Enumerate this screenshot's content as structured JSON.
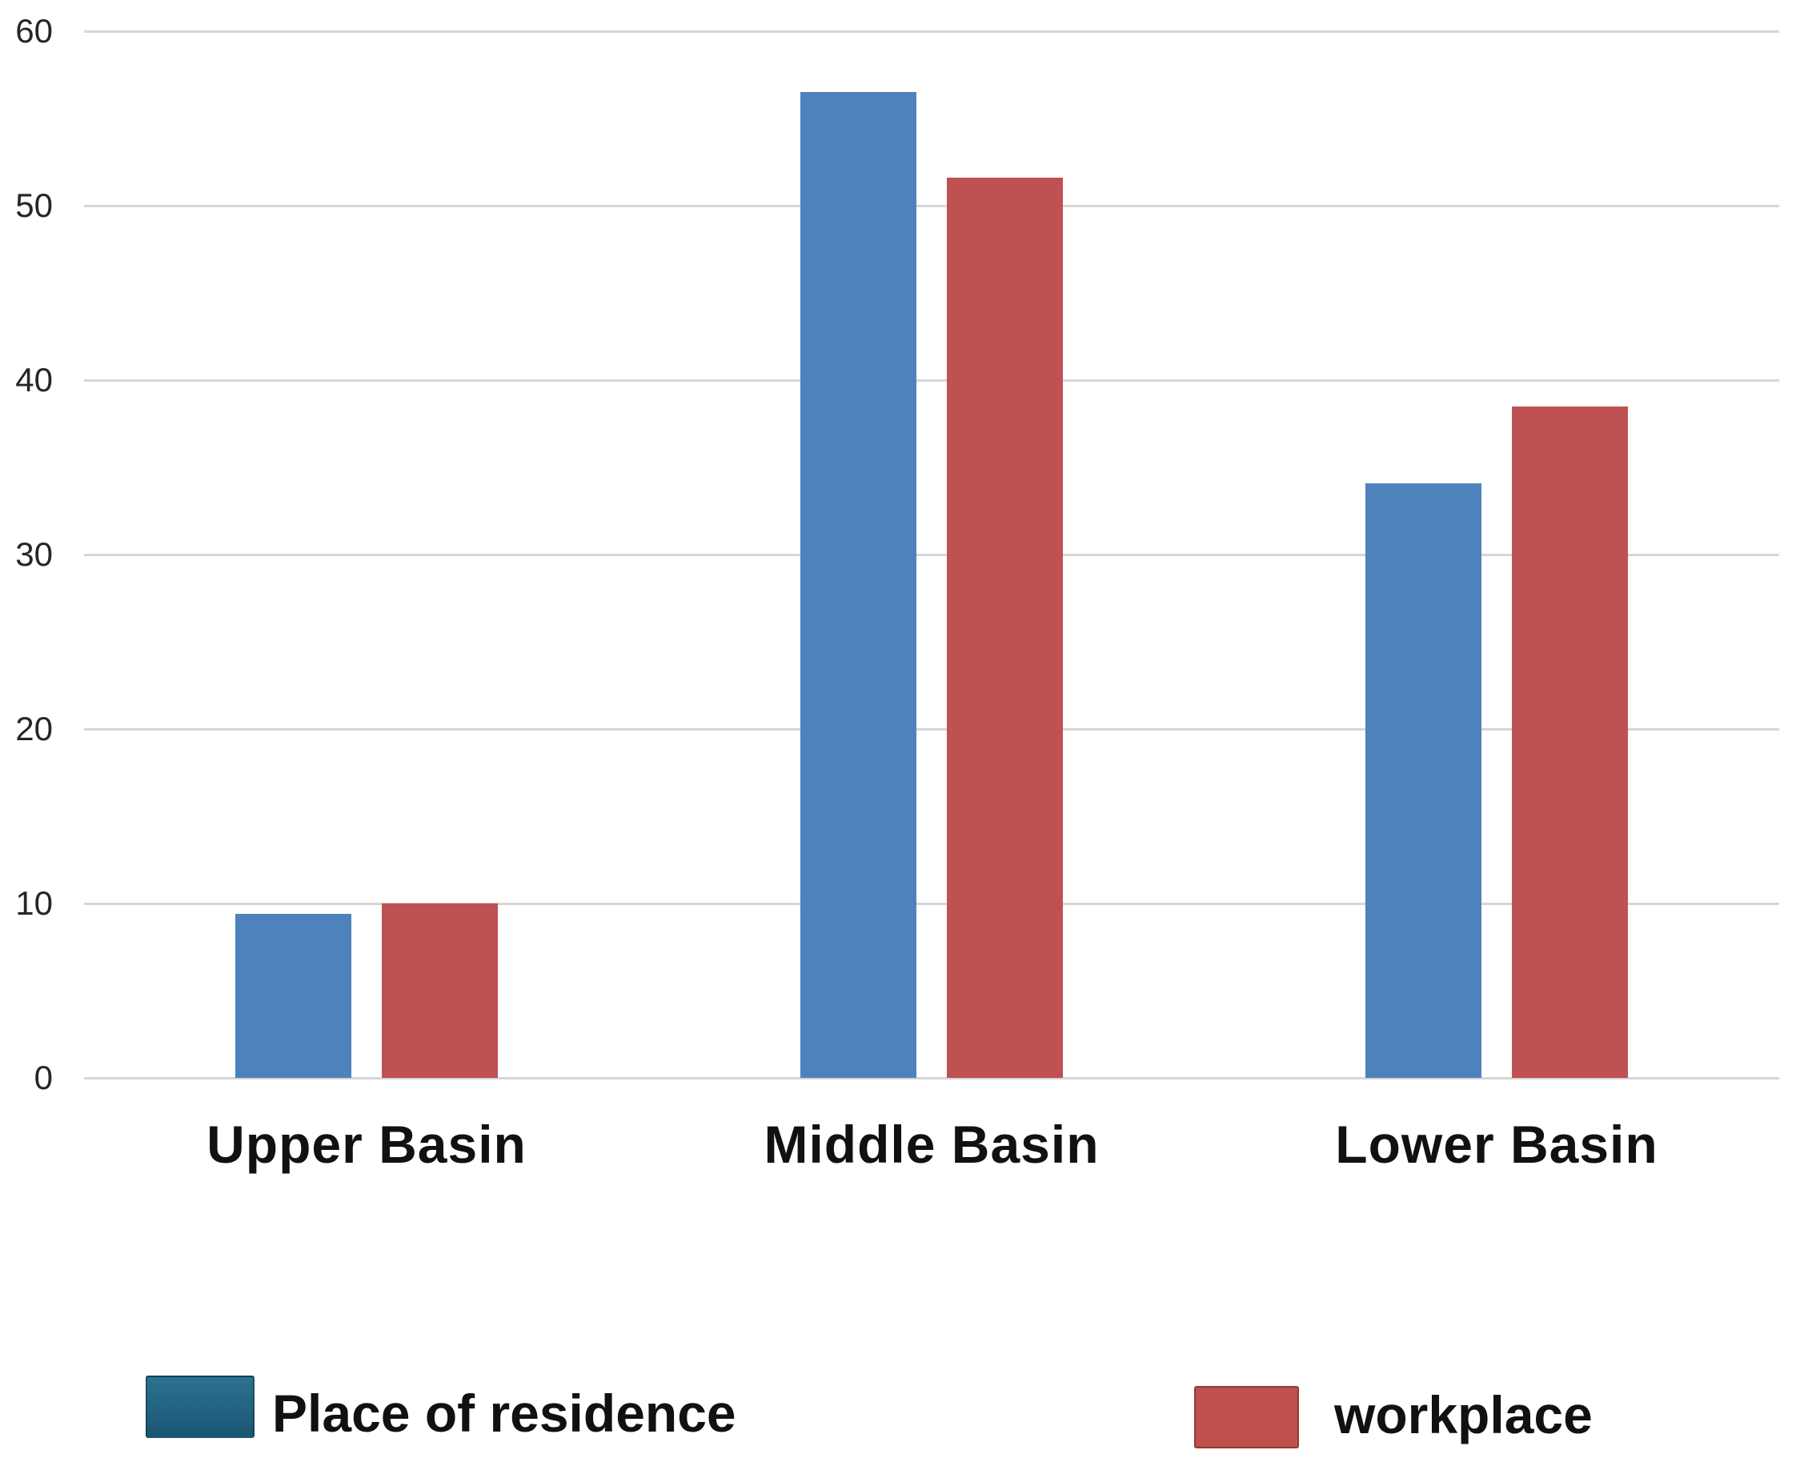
{
  "chart_data": {
    "type": "bar",
    "title": "",
    "categories": [
      "Upper Basin",
      "Middle Basin",
      "Lower Basin"
    ],
    "series": [
      {
        "name": "Place of residence",
        "color": "#4E82BD",
        "legend_color_top": "#2B7391",
        "legend_color_bottom": "#1A5674",
        "values": [
          9.4,
          56.5,
          34.1
        ]
      },
      {
        "name": "workplace",
        "color": "#C05152",
        "legend_color_top": "#C0504D",
        "legend_color_bottom": "#C0504D",
        "values": [
          10.0,
          51.6,
          38.5
        ]
      }
    ],
    "xlabel": "",
    "ylabel": "",
    "ylim": [
      0,
      60
    ],
    "yticks": [
      0,
      10,
      20,
      30,
      40,
      50,
      60
    ],
    "grid": "horizontal",
    "legend_position": "bottom",
    "colors": {
      "gridline": "#D6D6D6",
      "tick_text": "#262626",
      "label_text": "#111111",
      "background": "#FFFFFF"
    }
  }
}
